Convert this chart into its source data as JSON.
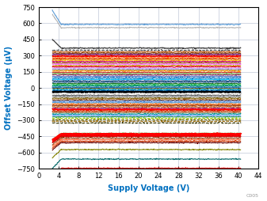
{
  "xlabel": "Supply Voltage (V)",
  "ylabel": "Offset Voltage (µV)",
  "xlim": [
    0,
    44
  ],
  "ylim": [
    -750,
    750
  ],
  "xticks": [
    0,
    4,
    8,
    12,
    16,
    20,
    24,
    28,
    32,
    36,
    40,
    44
  ],
  "yticks": [
    -750,
    -600,
    -450,
    -300,
    -150,
    0,
    150,
    300,
    450,
    600,
    750
  ],
  "x_start": 2.7,
  "x_end": 40.5,
  "background_color": "#ffffff",
  "plot_bg_color": "#ffffff",
  "grid_color": "#c0c8d8",
  "label_color": "#0070c0",
  "watermark": "C005",
  "lines": [
    {
      "y": 590,
      "color": "#5b9bd5",
      "lw": 0.8,
      "style": "-",
      "droop": 1
    },
    {
      "y": 560,
      "color": "#aaaaaa",
      "lw": 0.7,
      "style": "-",
      "droop": 1
    },
    {
      "y": 370,
      "color": "#3d3d3d",
      "lw": 0.9,
      "style": "-",
      "droop": 1
    },
    {
      "y": 350,
      "color": "#404040",
      "lw": 0.8,
      "style": "--",
      "droop": 0
    },
    {
      "y": 335,
      "color": "#c55a11",
      "lw": 0.8,
      "style": "-",
      "droop": 0
    },
    {
      "y": 323,
      "color": "#833c00",
      "lw": 0.8,
      "style": "-",
      "droop": 0
    },
    {
      "y": 312,
      "color": "#7030a0",
      "lw": 0.8,
      "style": "-",
      "droop": 0
    },
    {
      "y": 302,
      "color": "#c00000",
      "lw": 0.8,
      "style": "-",
      "droop": 0
    },
    {
      "y": 292,
      "color": "#ff0000",
      "lw": 0.8,
      "style": "-",
      "droop": 0
    },
    {
      "y": 280,
      "color": "#ff6600",
      "lw": 0.8,
      "style": "-",
      "droop": 0
    },
    {
      "y": 268,
      "color": "#cc3300",
      "lw": 0.8,
      "style": "-",
      "droop": 0
    },
    {
      "y": 257,
      "color": "#ffc000",
      "lw": 0.8,
      "style": "-",
      "droop": 0
    },
    {
      "y": 246,
      "color": "#cc0066",
      "lw": 0.8,
      "style": "-",
      "droop": 0
    },
    {
      "y": 233,
      "color": "#9e480e",
      "lw": 0.8,
      "style": "-",
      "droop": 0
    },
    {
      "y": 220,
      "color": "#ff66ff",
      "lw": 0.8,
      "style": "-",
      "droop": 0
    },
    {
      "y": 207,
      "color": "#bf8f00",
      "lw": 0.8,
      "style": "-",
      "droop": 0
    },
    {
      "y": 196,
      "color": "#e60026",
      "lw": 0.8,
      "style": "-",
      "droop": 0
    },
    {
      "y": 183,
      "color": "#cc99ff",
      "lw": 0.8,
      "style": "-",
      "droop": 0
    },
    {
      "y": 170,
      "color": "#7f7f7f",
      "lw": 0.8,
      "style": "-",
      "droop": 0
    },
    {
      "y": 158,
      "color": "#ff9900",
      "lw": 0.8,
      "style": "-",
      "droop": 0
    },
    {
      "y": 145,
      "color": "#cc3333",
      "lw": 0.8,
      "style": "-",
      "droop": 0
    },
    {
      "y": 133,
      "color": "#70ad47",
      "lw": 0.8,
      "style": "-",
      "droop": 0
    },
    {
      "y": 121,
      "color": "#993366",
      "lw": 0.8,
      "style": "-",
      "droop": 0
    },
    {
      "y": 107,
      "color": "#4472c4",
      "lw": 0.8,
      "style": "-",
      "droop": 0
    },
    {
      "y": 92,
      "color": "#0070c0",
      "lw": 0.8,
      "style": "-",
      "droop": 0
    },
    {
      "y": 78,
      "color": "#00b0f0",
      "lw": 0.8,
      "style": "-",
      "droop": 0
    },
    {
      "y": 64,
      "color": "#003366",
      "lw": 0.8,
      "style": "-",
      "droop": 0
    },
    {
      "y": 52,
      "color": "#336699",
      "lw": 0.8,
      "style": "-",
      "droop": 0
    },
    {
      "y": 40,
      "color": "#1f7a1f",
      "lw": 0.8,
      "style": "-",
      "droop": 0
    },
    {
      "y": 28,
      "color": "#00b050",
      "lw": 0.8,
      "style": "-",
      "droop": 0
    },
    {
      "y": 16,
      "color": "#008080",
      "lw": 0.8,
      "style": "-",
      "droop": 0
    },
    {
      "y": 5,
      "color": "#2e75b6",
      "lw": 0.8,
      "style": "-",
      "droop": 0
    },
    {
      "y": -6,
      "color": "#375623",
      "lw": 0.8,
      "style": "-",
      "droop": 0
    },
    {
      "y": -18,
      "color": "#00b0f0",
      "lw": 0.8,
      "style": "-",
      "droop": 0
    },
    {
      "y": -30,
      "color": "#003366",
      "lw": 1.2,
      "style": "-",
      "droop": 0
    },
    {
      "y": -42,
      "color": "#000000",
      "lw": 2.2,
      "style": "-",
      "droop": 0
    },
    {
      "y": -55,
      "color": "#ffffff",
      "lw": 1.4,
      "style": "-",
      "droop": 0
    },
    {
      "y": -68,
      "color": "#595959",
      "lw": 0.8,
      "style": "-",
      "droop": 0
    },
    {
      "y": -82,
      "color": "#7f7f7f",
      "lw": 0.8,
      "style": "-",
      "droop": 0
    },
    {
      "y": -96,
      "color": "#806000",
      "lw": 0.8,
      "style": "-",
      "droop": 0
    },
    {
      "y": -110,
      "color": "#843c0c",
      "lw": 0.8,
      "style": "-",
      "droop": 0
    },
    {
      "y": -123,
      "color": "#4472c4",
      "lw": 0.8,
      "style": "-",
      "droop": 0
    },
    {
      "y": -136,
      "color": "#5a96c8",
      "lw": 0.8,
      "style": "-",
      "droop": 0
    },
    {
      "y": -150,
      "color": "#ff6600",
      "lw": 0.8,
      "style": "-",
      "droop": 0
    },
    {
      "y": -163,
      "color": "#993300",
      "lw": 0.8,
      "style": "-",
      "droop": 0
    },
    {
      "y": -176,
      "color": "#c55a11",
      "lw": 0.8,
      "style": "-",
      "droop": 0
    },
    {
      "y": -190,
      "color": "#7030a0",
      "lw": 0.8,
      "style": "-",
      "droop": 0
    },
    {
      "y": -200,
      "color": "#ff0000",
      "lw": 1.5,
      "style": "-",
      "droop": 0
    },
    {
      "y": -215,
      "color": "#cc3300",
      "lw": 0.8,
      "style": "-",
      "droop": 0
    },
    {
      "y": -228,
      "color": "#996633",
      "lw": 0.8,
      "style": "-",
      "droop": 0
    },
    {
      "y": -242,
      "color": "#009999",
      "lw": 0.8,
      "style": "-",
      "droop": 0
    },
    {
      "y": -255,
      "color": "#6699ff",
      "lw": 0.8,
      "style": "-",
      "droop": 0
    },
    {
      "y": -268,
      "color": "#339966",
      "lw": 0.8,
      "style": "-",
      "droop": 0
    },
    {
      "y": -282,
      "color": "#99cc00",
      "lw": 0.8,
      "style": "--",
      "droop": 0
    },
    {
      "y": -296,
      "color": "#666600",
      "lw": 0.8,
      "style": "--",
      "droop": 0
    },
    {
      "y": -310,
      "color": "#996600",
      "lw": 0.8,
      "style": "--",
      "droop": 0
    },
    {
      "y": -325,
      "color": "#333300",
      "lw": 0.8,
      "style": "--",
      "droop": 0
    },
    {
      "y": -420,
      "color": "#a9d18e",
      "lw": 0.8,
      "style": "-",
      "droop": -1
    },
    {
      "y": -435,
      "color": "#ff0000",
      "lw": 3.0,
      "style": "-",
      "droop": -1
    },
    {
      "y": -450,
      "color": "#cc0000",
      "lw": 0.8,
      "style": "-",
      "droop": -1
    },
    {
      "y": -465,
      "color": "#993300",
      "lw": 0.8,
      "style": "-",
      "droop": -1
    },
    {
      "y": -480,
      "color": "#ff6633",
      "lw": 0.8,
      "style": "-",
      "droop": -1
    },
    {
      "y": -495,
      "color": "#cc3300",
      "lw": 0.8,
      "style": "-",
      "droop": -1
    },
    {
      "y": -508,
      "color": "#660000",
      "lw": 0.8,
      "style": "-",
      "droop": -1
    },
    {
      "y": -572,
      "color": "#808000",
      "lw": 0.8,
      "style": "-",
      "droop": -1
    },
    {
      "y": -660,
      "color": "#006666",
      "lw": 0.8,
      "style": "-",
      "droop": -1
    },
    {
      "y": -745,
      "color": "#ff0000",
      "lw": 0.7,
      "style": "-",
      "droop": -1
    }
  ]
}
